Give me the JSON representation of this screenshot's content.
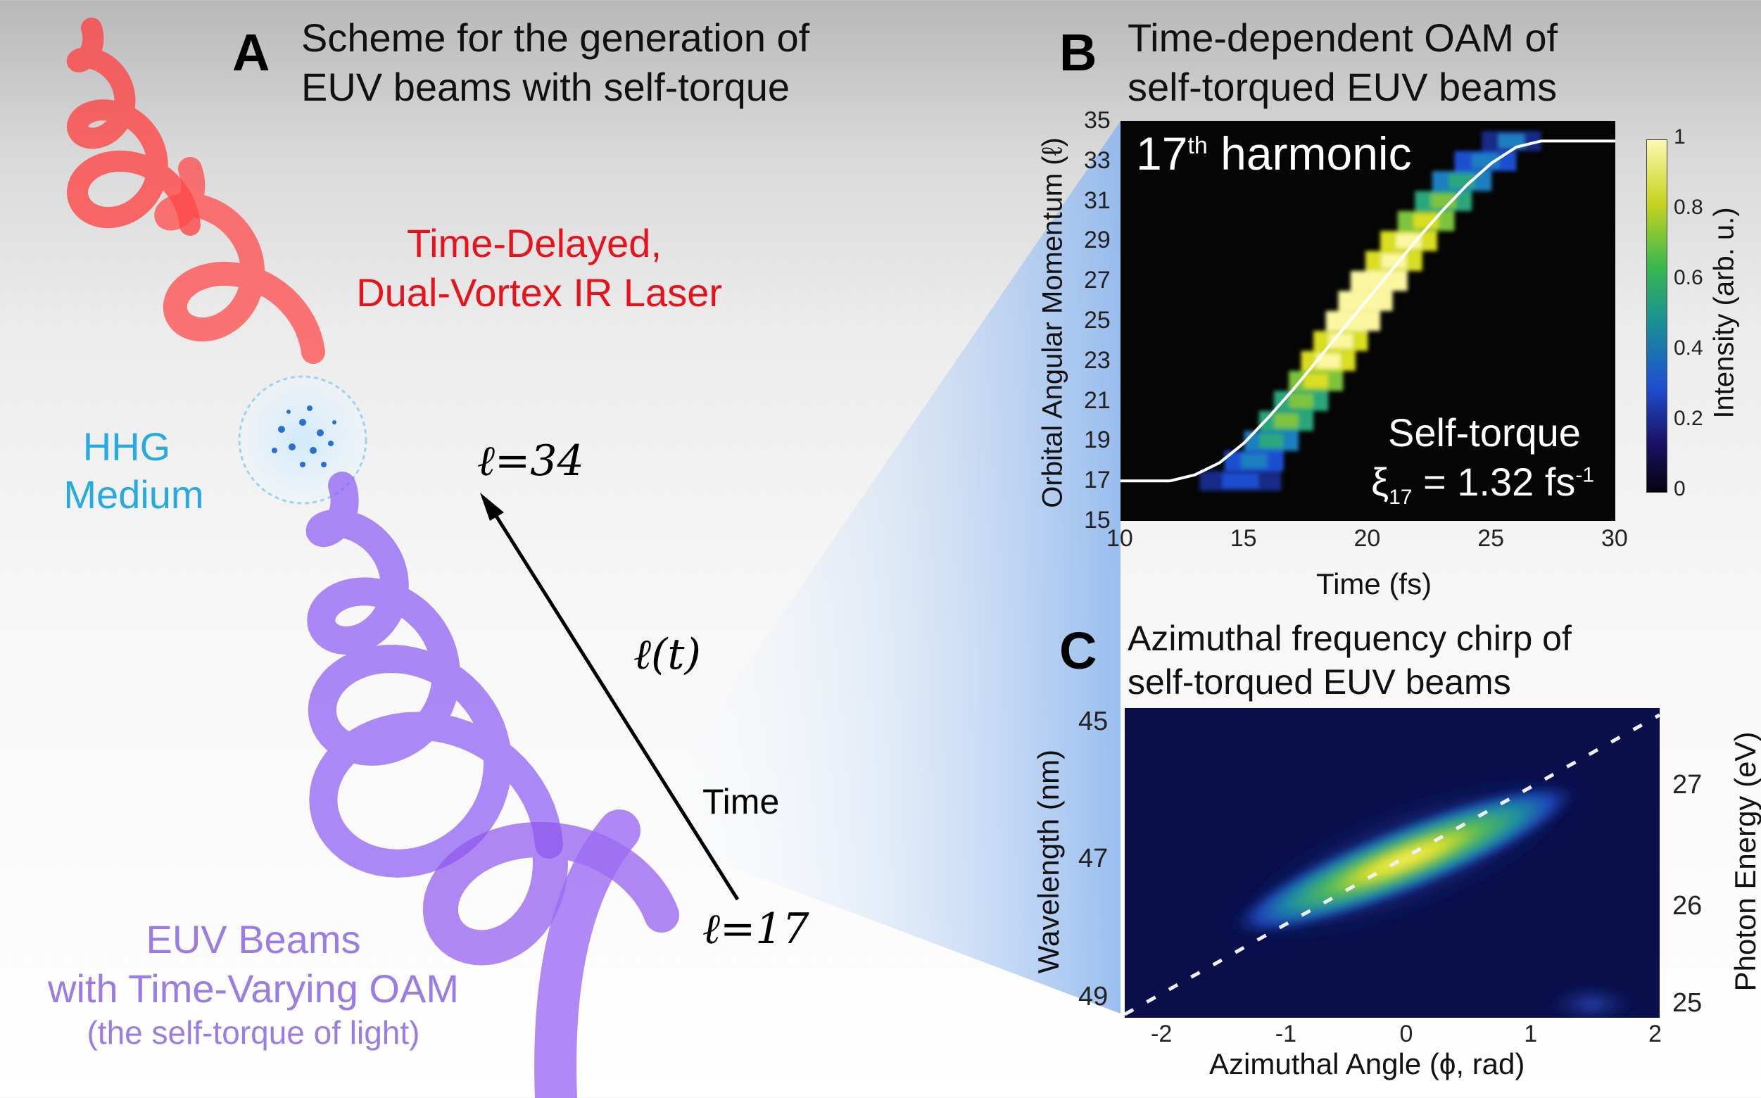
{
  "colors": {
    "ir_laser": "#e8121b",
    "hhg": "#27a9e1",
    "euv": "#9b7be6",
    "beam_cone": "#9fc4ee"
  },
  "panelA": {
    "letter": "A",
    "title_line1": "Scheme for the generation of",
    "title_line2": "EUV beams with self-torque",
    "ir_label_line1": "Time-Delayed,",
    "ir_label_line2": "Dual-Vortex IR Laser",
    "hhg_line1": "HHG",
    "hhg_line2": "Medium",
    "l_top": "ℓ=34",
    "l_t": "ℓ(t)",
    "time_label": "Time",
    "l_bottom": "ℓ=17",
    "euv_line1": "EUV Beams",
    "euv_line2": "with Time-Varying OAM",
    "euv_line3": "(the self-torque of light)"
  },
  "panelB": {
    "letter": "B",
    "title_line1": "Time-dependent OAM of",
    "title_line2": "self-torqued EUV beams",
    "harmonic_num": "17",
    "harmonic_sup": "th",
    "harmonic_word": "harmonic",
    "selftorque_label": "Self-torque",
    "xi_symbol": "ξ",
    "xi_sub": "17",
    "xi_value": "= 1.32 fs",
    "xi_sup": "-1",
    "ylabel": "Orbital Angular Momentum (ℓ)",
    "xlabel": "Time (fs)",
    "colorbar_label": "Intensity (arb. u.)",
    "colorbar_ticks": [
      "1",
      "0.8",
      "0.6",
      "0.4",
      "0.2",
      "0"
    ]
  },
  "panelC": {
    "letter": "C",
    "title_line1": "Azimuthal frequency chirp of",
    "title_line2": "self-torqued EUV beams",
    "xlabel": "Azimuthal Angle (ϕ, rad)",
    "ylabel_left": "Wavelength (nm)",
    "ylabel_right": "Photon Energy (eV)"
  },
  "chart_data": [
    {
      "type": "heatmap",
      "title": "17th harmonic",
      "xlabel": "Time (fs)",
      "ylabel": "Orbital Angular Momentum (ℓ)",
      "xlim": [
        10,
        30
      ],
      "ylim": [
        15,
        35
      ],
      "xticks": [
        "10",
        "15",
        "20",
        "25",
        "30"
      ],
      "yticks": [
        "15",
        "17",
        "19",
        "21",
        "23",
        "25",
        "27",
        "29",
        "31",
        "33",
        "35"
      ],
      "colorbar": {
        "label": "Intensity (arb. u.)",
        "range": [
          0,
          1
        ]
      },
      "curve": {
        "time": [
          10,
          12,
          13,
          14,
          15,
          16,
          17,
          18,
          19,
          20,
          21,
          22,
          23,
          24,
          25,
          26,
          27,
          28,
          30
        ],
        "oam": [
          17,
          17,
          17.3,
          17.9,
          18.9,
          20.2,
          21.6,
          23.1,
          24.6,
          26.1,
          27.6,
          29.1,
          30.5,
          31.8,
          32.9,
          33.7,
          34.0,
          34.0,
          34.0
        ]
      },
      "blocks": [
        {
          "oam": 17,
          "time": [
            13.2,
            16.5
          ],
          "peak": 0.12
        },
        {
          "oam": 18,
          "time": [
            14.2,
            16.6
          ],
          "peak": 0.25
        },
        {
          "oam": 19,
          "time": [
            15.0,
            17.2
          ],
          "peak": 0.35
        },
        {
          "oam": 20,
          "time": [
            15.6,
            17.8
          ],
          "peak": 0.5
        },
        {
          "oam": 21,
          "time": [
            16.2,
            18.4
          ],
          "peak": 0.6
        },
        {
          "oam": 22,
          "time": [
            16.8,
            19.0
          ],
          "peak": 0.7
        },
        {
          "oam": 23,
          "time": [
            17.3,
            19.5
          ],
          "peak": 0.8
        },
        {
          "oam": 24,
          "time": [
            17.8,
            20.0
          ],
          "peak": 0.9
        },
        {
          "oam": 25,
          "time": [
            18.3,
            20.5
          ],
          "peak": 1.0
        },
        {
          "oam": 26,
          "time": [
            18.8,
            21.0
          ],
          "peak": 1.0
        },
        {
          "oam": 27,
          "time": [
            19.3,
            21.6
          ],
          "peak": 0.95
        },
        {
          "oam": 28,
          "time": [
            19.9,
            22.2
          ],
          "peak": 0.9
        },
        {
          "oam": 29,
          "time": [
            20.5,
            22.8
          ],
          "peak": 0.8
        },
        {
          "oam": 30,
          "time": [
            21.2,
            23.5
          ],
          "peak": 0.65
        },
        {
          "oam": 31,
          "time": [
            21.9,
            24.2
          ],
          "peak": 0.55
        },
        {
          "oam": 32,
          "time": [
            22.6,
            25.0
          ],
          "peak": 0.42
        },
        {
          "oam": 33,
          "time": [
            23.5,
            26.0
          ],
          "peak": 0.3
        },
        {
          "oam": 34,
          "time": [
            24.6,
            27.0
          ],
          "peak": 0.18
        }
      ],
      "annotation": "Self-torque ξ17 = 1.32 fs-1"
    },
    {
      "type": "heatmap",
      "title": "",
      "xlabel": "Azimuthal Angle (ϕ, rad)",
      "ylabel": "Wavelength (nm)",
      "ylabel_right": "Photon Energy (eV)",
      "xlim": [
        -2.3,
        2.0
      ],
      "ylim_wavelength_nm": [
        44.8,
        49.3
      ],
      "xticks": [
        "-2",
        "-1",
        "0",
        "1",
        "2"
      ],
      "yticks_left": [
        "45",
        "47",
        "49"
      ],
      "yticks_right": [
        "27",
        "26",
        "25"
      ],
      "ridge": {
        "phi": [
          -1.3,
          -0.8,
          -0.3,
          0.0,
          0.3,
          0.8,
          1.2
        ],
        "wavelength_nm": [
          47.9,
          47.6,
          47.2,
          47.0,
          46.8,
          46.4,
          46.1
        ]
      },
      "dashed_line": {
        "phi": [
          -2.3,
          2.0
        ],
        "wavelength_nm": [
          49.25,
          44.9
        ]
      }
    }
  ]
}
